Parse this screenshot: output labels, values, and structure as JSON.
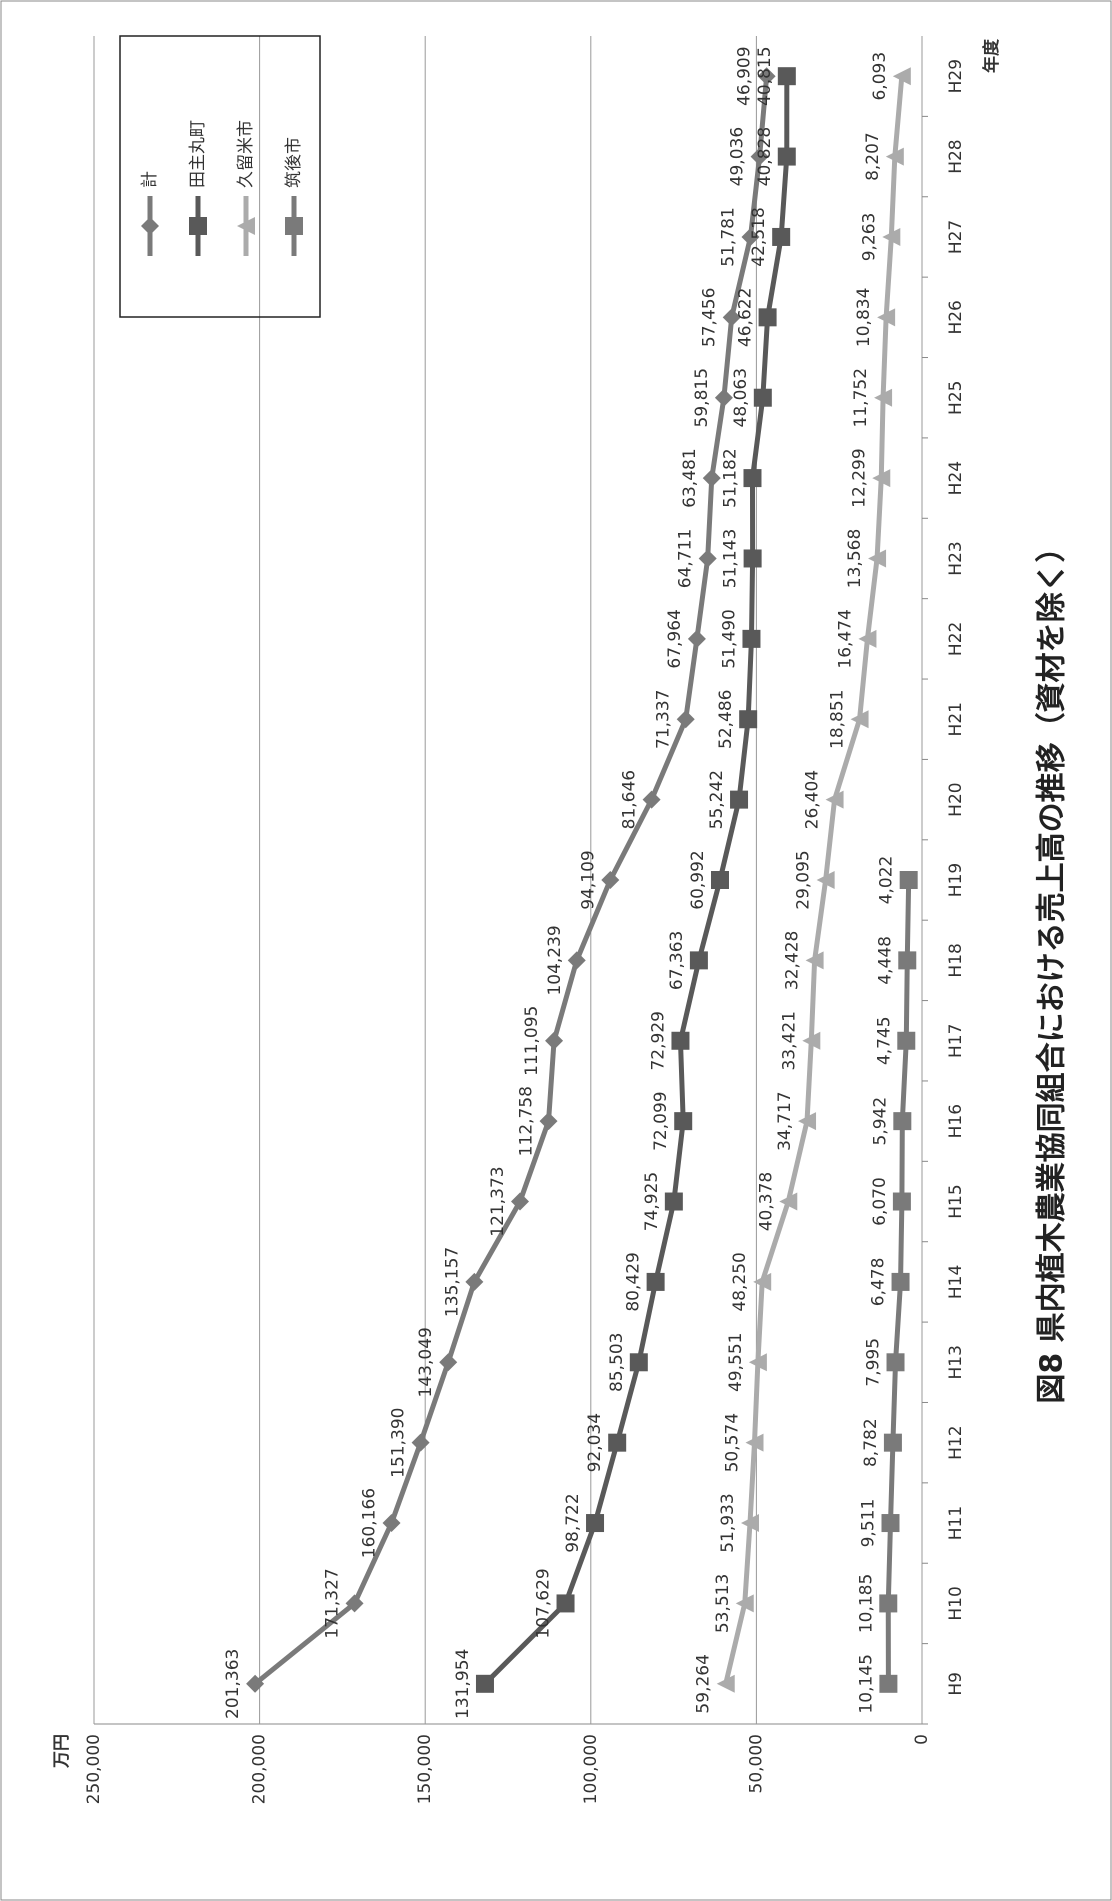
{
  "chart_data": {
    "type": "line",
    "title": "図8 県内植木農業協同組合における売上高の推移（資材を除く）",
    "y_unit": "万円",
    "x_unit": "年度",
    "categories": [
      "H9",
      "H10",
      "H11",
      "H12",
      "H13",
      "H14",
      "H15",
      "H16",
      "H17",
      "H18",
      "H19",
      "H20",
      "H21",
      "H22",
      "H23",
      "H24",
      "H25",
      "H26",
      "H27",
      "H28",
      "H29"
    ],
    "ylim": [
      0,
      250000
    ],
    "yticks": [
      0,
      {
        "value": 50000,
        "label": "50,000"
      },
      {
        "value": 100000,
        "label": "100,000"
      },
      {
        "value": 150000,
        "label": "150,000"
      },
      {
        "value": 200000,
        "label": "200,000"
      },
      {
        "value": 250000,
        "label": "250,000"
      }
    ],
    "grid": true,
    "legend": "top-right",
    "series": [
      {
        "name": "計",
        "color": "#7a7a7a",
        "marker": "diamond",
        "values": [
          201363,
          171327,
          160166,
          151390,
          143049,
          135157,
          121373,
          112758,
          111095,
          104239,
          94109,
          81646,
          71337,
          67964,
          64711,
          63481,
          59815,
          57456,
          51781,
          49036,
          46909
        ],
        "value_labels": [
          "201,363",
          "171,327",
          "160,166",
          "151,390",
          "143,049",
          "135,157",
          "121,373",
          "112,758",
          "111,095",
          "104,239",
          "94,109",
          "81,646",
          "71,337",
          "67,964",
          "64,711",
          "63,481",
          "59,815",
          "57,456",
          "51,781",
          "49,036",
          "46,909"
        ]
      },
      {
        "name": "田主丸町",
        "color": "#595959",
        "marker": "square",
        "values": [
          131954,
          107629,
          98722,
          92034,
          85503,
          80429,
          74925,
          72099,
          72929,
          67363,
          60992,
          55242,
          52486,
          51490,
          51143,
          51182,
          48063,
          46622,
          42518,
          40828,
          40815
        ],
        "value_labels": [
          "131,954",
          "107,629",
          "98,722",
          "92,034",
          "85,503",
          "80,429",
          "74,925",
          "72,099",
          "72,929",
          "67,363",
          "60,992",
          "55,242",
          "52,486",
          "51,490",
          "51,143",
          "51,182",
          "48,063",
          "46,622",
          "42,518",
          "40,828",
          "40,815"
        ]
      },
      {
        "name": "久留米市",
        "color": "#ababab",
        "marker": "triangle",
        "values": [
          59264,
          53513,
          51933,
          50574,
          49551,
          48250,
          40378,
          34717,
          33421,
          32428,
          29095,
          26404,
          18851,
          16474,
          13568,
          12299,
          11752,
          10834,
          9263,
          8207,
          6093
        ],
        "value_labels": [
          "59,264",
          "53,513",
          "51,933",
          "50,574",
          "49,551",
          "48,250",
          "40,378",
          "34,717",
          "33,421",
          "32,428",
          "29,095",
          "26,404",
          "18,851",
          "16,474",
          "13,568",
          "12,299",
          "11,752",
          "10,834",
          "9,263",
          "8,207",
          "6,093"
        ]
      },
      {
        "name": "筑後市",
        "color": "#7a7a7a",
        "marker": "square",
        "values": [
          10145,
          10185,
          9511,
          8782,
          7995,
          6478,
          6070,
          5942,
          4745,
          4448,
          4022,
          null,
          null,
          null,
          null,
          null,
          null,
          null,
          null,
          null,
          null
        ],
        "value_labels": [
          "10,145",
          "10,185",
          "9,511",
          "8,782",
          "7,995",
          "6,478",
          "6,070",
          "5,942",
          "4,745",
          "4,448",
          "4,022",
          null,
          null,
          null,
          null,
          null,
          null,
          null,
          null,
          null,
          null
        ]
      }
    ]
  }
}
